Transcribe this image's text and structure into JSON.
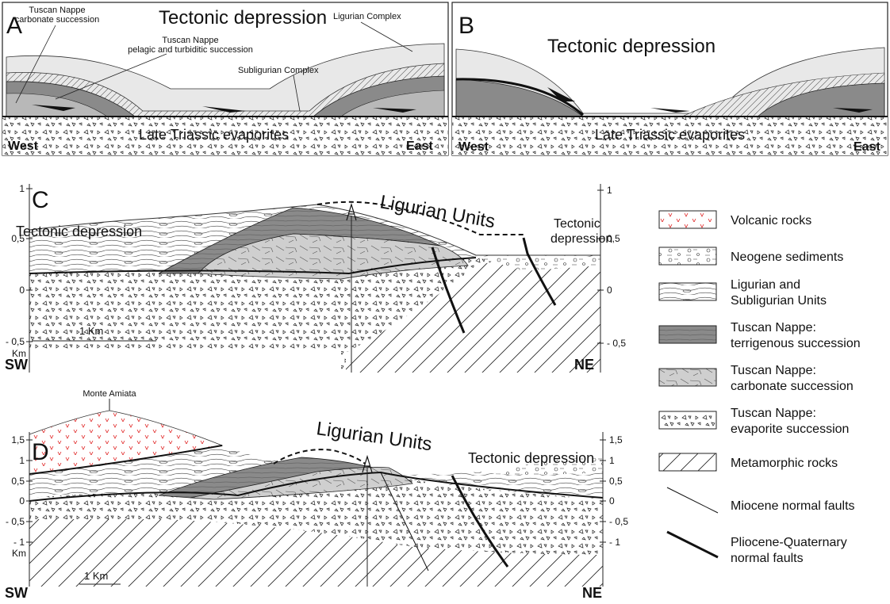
{
  "panel_a": {
    "letter": "A",
    "title": "Tectonic depression",
    "carbonate": [
      "Tuscan Nappe",
      "carbonate succession"
    ],
    "pelagic": [
      "Tuscan Nappe",
      "pelagic and turbiditic succession"
    ],
    "ligurian": "Ligurian Complex",
    "subligurian": "Subligurian Complex",
    "evaporites": "Late Triassic evaporites",
    "west": "West",
    "east": "East"
  },
  "panel_b": {
    "letter": "B",
    "title": "Tectonic depression",
    "evaporites": "Late Triassic evaporites",
    "west": "West",
    "east": "East"
  },
  "panel_c": {
    "letter": "C",
    "depression_left": "Tectonic depression",
    "units": "Ligurian Units",
    "depression_right": [
      "Tectonic",
      "depression"
    ],
    "left_ticks": [
      "1",
      "0,5",
      "0",
      "- 0,5"
    ],
    "right_ticks": [
      "1",
      "0,5",
      "0",
      "- 0,5"
    ],
    "unit": "Km",
    "scale": "1 Km",
    "sw": "SW",
    "ne": "NE"
  },
  "panel_d": {
    "peak": "Monte Amiata",
    "letter": "D",
    "units": "Ligurian Units",
    "depression": "Tectonic depression",
    "left_ticks": [
      "1,5",
      "1",
      "0,5",
      "0",
      "- 0,5",
      "- 1"
    ],
    "right_ticks": [
      "1,5",
      "1",
      "0,5",
      "0",
      "- 0,5",
      "- 1"
    ],
    "unit": "Km",
    "scale": "1 Km",
    "sw": "SW",
    "ne": "NE"
  },
  "legend": [
    [
      "Volcanic rocks"
    ],
    [
      "Neogene sediments"
    ],
    [
      "Ligurian and",
      "Subligurian Units"
    ],
    [
      "Tuscan Nappe:",
      "terrigenous succession"
    ],
    [
      "Tuscan Nappe:",
      "carbonate succession"
    ],
    [
      "Tuscan Nappe:",
      "evaporite succession"
    ],
    [
      "Metamorphic rocks"
    ],
    [
      "Miocene normal faults"
    ],
    [
      "Pliocene-Quaternary",
      "normal faults"
    ]
  ]
}
